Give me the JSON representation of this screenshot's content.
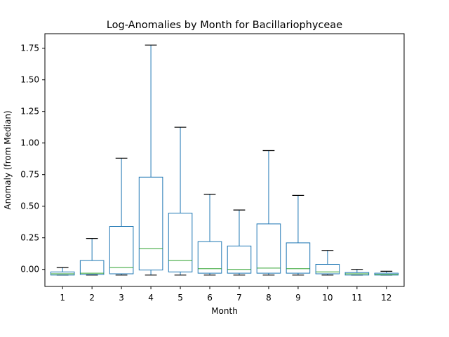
{
  "chart_data": {
    "type": "box",
    "title": "Log-Anomalies by Month for Bacillariophyceae",
    "xlabel": "Month",
    "ylabel": "Anomaly (from Median)",
    "ylim": [
      -0.135,
      1.865
    ],
    "yticks": [
      0.0,
      0.25,
      0.5,
      0.75,
      1.0,
      1.25,
      1.5,
      1.75
    ],
    "ytick_labels": [
      "0.00",
      "0.25",
      "0.50",
      "0.75",
      "1.00",
      "1.25",
      "1.50",
      "1.75"
    ],
    "categories": [
      "1",
      "2",
      "3",
      "4",
      "5",
      "6",
      "7",
      "8",
      "9",
      "10",
      "11",
      "12"
    ],
    "grid": false,
    "colors": {
      "box": "#1f77b4",
      "median": "#2ca02c",
      "whisker": "#000000"
    },
    "boxes": [
      {
        "month": "1",
        "whislo": -0.045,
        "q1": -0.045,
        "med": -0.035,
        "q3": -0.02,
        "whishi": 0.015
      },
      {
        "month": "2",
        "whislo": -0.045,
        "q1": -0.04,
        "med": -0.03,
        "q3": 0.07,
        "whishi": 0.245
      },
      {
        "month": "3",
        "whislo": -0.045,
        "q1": -0.035,
        "med": 0.015,
        "q3": 0.34,
        "whishi": 0.88
      },
      {
        "month": "4",
        "whislo": -0.045,
        "q1": -0.005,
        "med": 0.165,
        "q3": 0.73,
        "whishi": 1.775
      },
      {
        "month": "5",
        "whislo": -0.045,
        "q1": -0.02,
        "med": 0.07,
        "q3": 0.445,
        "whishi": 1.125
      },
      {
        "month": "6",
        "whislo": -0.045,
        "q1": -0.03,
        "med": 0.005,
        "q3": 0.22,
        "whishi": 0.595
      },
      {
        "month": "7",
        "whislo": -0.045,
        "q1": -0.03,
        "med": 0.0,
        "q3": 0.185,
        "whishi": 0.47
      },
      {
        "month": "8",
        "whislo": -0.045,
        "q1": -0.03,
        "med": 0.01,
        "q3": 0.36,
        "whishi": 0.94
      },
      {
        "month": "9",
        "whislo": -0.045,
        "q1": -0.03,
        "med": 0.005,
        "q3": 0.21,
        "whishi": 0.585
      },
      {
        "month": "10",
        "whislo": -0.045,
        "q1": -0.035,
        "med": -0.02,
        "q3": 0.04,
        "whishi": 0.15
      },
      {
        "month": "11",
        "whislo": -0.045,
        "q1": -0.045,
        "med": -0.035,
        "q3": -0.025,
        "whishi": 0.0
      },
      {
        "month": "12",
        "whislo": -0.045,
        "q1": -0.045,
        "med": -0.04,
        "q3": -0.03,
        "whishi": -0.015
      }
    ]
  }
}
